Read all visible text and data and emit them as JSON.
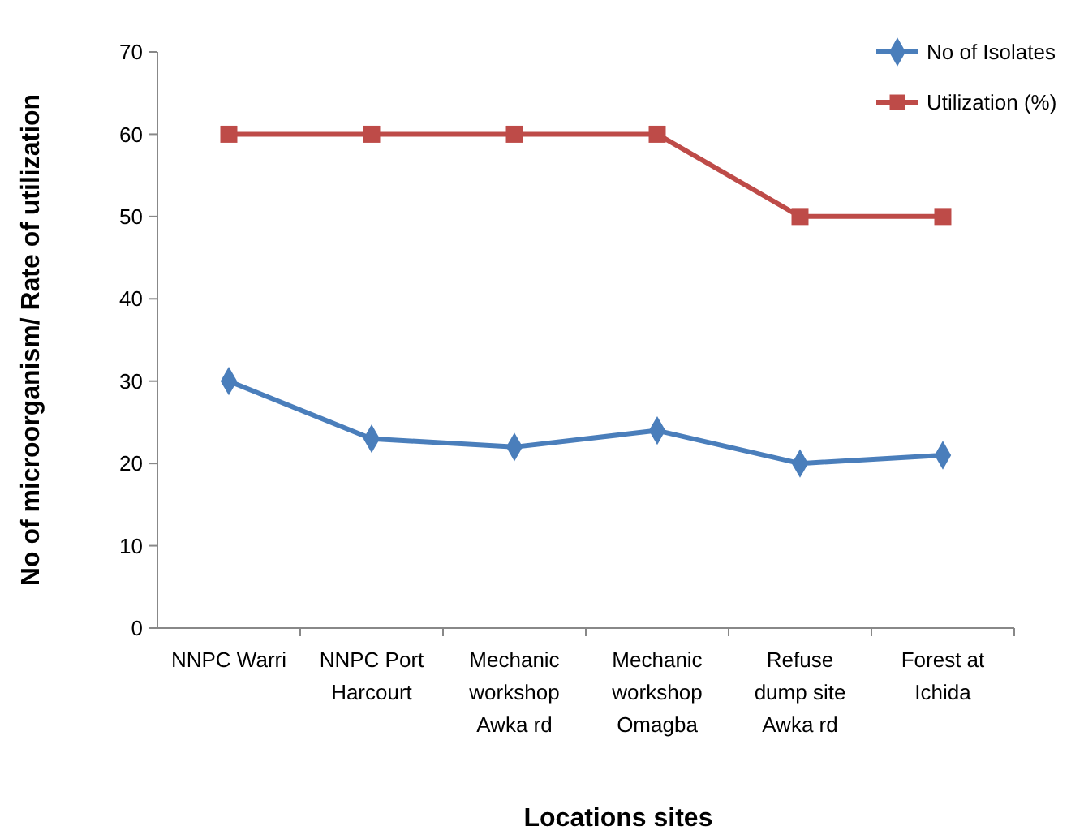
{
  "chart_data": {
    "type": "line",
    "xlabel": "Locations sites",
    "ylabel": "No of microorganism/ Rate of utilization",
    "categories": [
      "NNPC Warri",
      "NNPC Port Harcourt",
      "Mechanic workshop Awka rd",
      "Mechanic workshop Omagba",
      "Refuse dump site Awka rd",
      "Forest at Ichida"
    ],
    "series": [
      {
        "name": "No of Isolates",
        "color": "#4a7ebb",
        "marker": "diamond",
        "values": [
          30,
          23,
          22,
          24,
          20,
          21
        ]
      },
      {
        "name": "Utilization (%)",
        "color": "#be4b48",
        "marker": "square",
        "values": [
          60,
          60,
          60,
          60,
          50,
          50
        ]
      }
    ],
    "ylim": [
      0,
      70
    ],
    "yticks": [
      0,
      10,
      20,
      30,
      40,
      50,
      60,
      70
    ],
    "grid": false,
    "legend": "top right"
  }
}
